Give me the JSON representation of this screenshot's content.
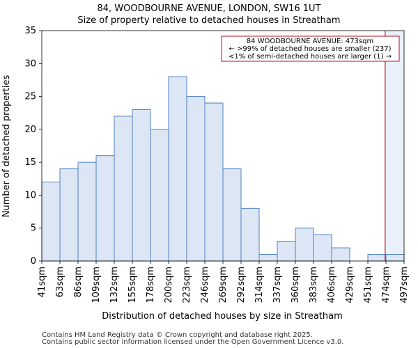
{
  "page": {
    "title_line1": "84, WOODBOURNE AVENUE, LONDON, SW16 1UT",
    "title_line2": "Size of property relative to detached houses in Streatham",
    "footer_line1": "Contains HM Land Registry data © Crown copyright and database right 2025.",
    "footer_line2": "Contains public sector information licensed under the Open Government Licence v3.0."
  },
  "chart_data": {
    "type": "bar",
    "title": "Size of property relative to detached houses in Streatham",
    "xlabel": "Distribution of detached houses by size in Streatham",
    "ylabel": "Number of detached properties",
    "bin_edges": [
      41,
      63,
      86,
      109,
      132,
      155,
      178,
      200,
      223,
      246,
      269,
      292,
      314,
      337,
      360,
      383,
      406,
      429,
      451,
      474,
      497
    ],
    "tick_labels": [
      "41sqm",
      "63sqm",
      "86sqm",
      "109sqm",
      "132sqm",
      "155sqm",
      "178sqm",
      "200sqm",
      "223sqm",
      "246sqm",
      "269sqm",
      "292sqm",
      "314sqm",
      "337sqm",
      "360sqm",
      "383sqm",
      "406sqm",
      "429sqm",
      "451sqm",
      "474sqm",
      "497sqm"
    ],
    "values": [
      12,
      14,
      15,
      16,
      22,
      23,
      20,
      28,
      25,
      24,
      14,
      8,
      1,
      3,
      5,
      4,
      2,
      0,
      1,
      1
    ],
    "ylim": [
      0,
      35
    ],
    "yticks": [
      0,
      5,
      10,
      15,
      20,
      25,
      30,
      35
    ],
    "grid": false,
    "marker": {
      "value": 473,
      "color": "#b0112b",
      "shade_color": "#eaf0fb"
    },
    "annotation": {
      "lines": [
        "84 WOODBOURNE AVENUE: 473sqm",
        "← >99% of detached houses are smaller (237)",
        "<1% of semi-detached houses are larger (1) →"
      ],
      "placement": "top-right"
    },
    "colors": {
      "bar_fill": "#dce6f5",
      "bar_edge": "#4f81c4",
      "axis": "#000000"
    }
  }
}
